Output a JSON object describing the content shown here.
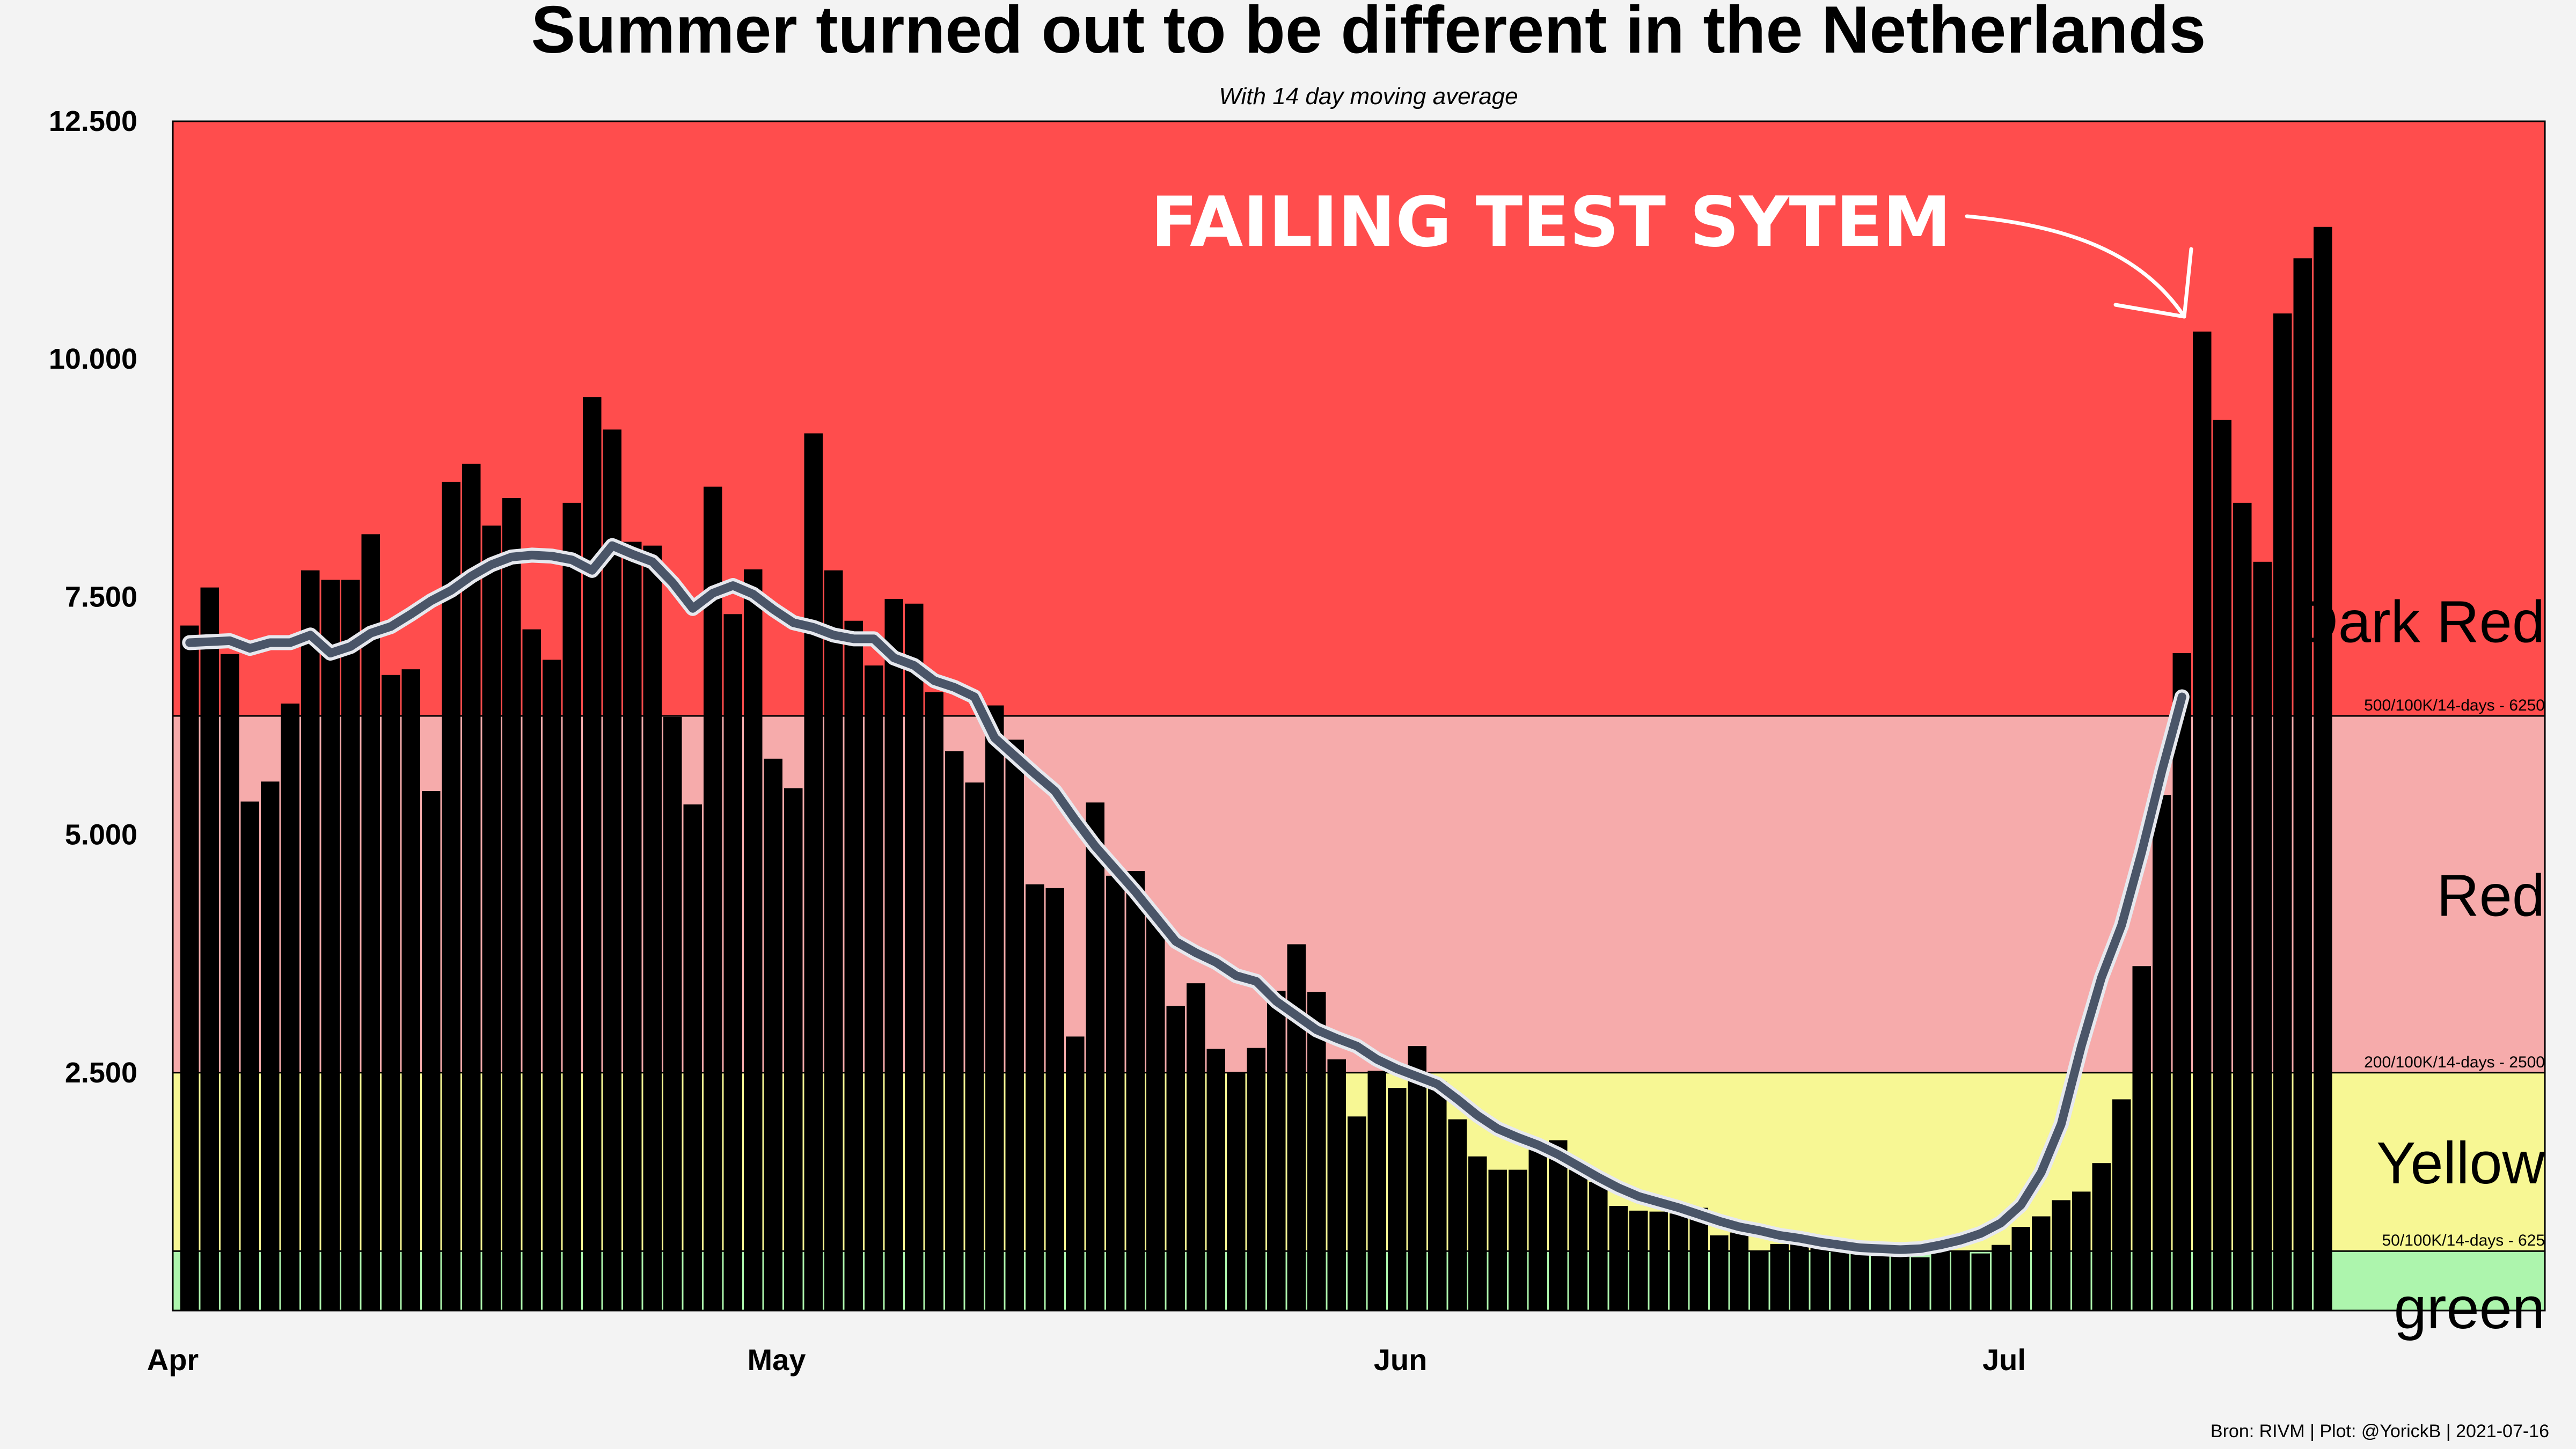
{
  "chart_data": {
    "type": "bar",
    "title": "Summer turned out to be different in the Netherlands",
    "subtitle": "With 14 day moving average",
    "x_ticks": [
      "Apr",
      "May",
      "Jun",
      "Jul"
    ],
    "y_ticks": [
      "2.500",
      "5.000",
      "7.500",
      "10.000",
      "12.500"
    ],
    "ylim": [
      0,
      12500
    ],
    "grid": false,
    "bars": {
      "start_date": "2021-04-01",
      "values": [
        7200,
        7600,
        6900,
        5350,
        5560,
        6380,
        7780,
        7680,
        7680,
        8160,
        6680,
        6740,
        5460,
        8710,
        8900,
        8250,
        8540,
        7160,
        6840,
        8490,
        9600,
        9260,
        8080,
        8040,
        6240,
        5320,
        8660,
        7320,
        7790,
        5800,
        5490,
        9220,
        7780,
        7250,
        6780,
        7480,
        7430,
        6500,
        5880,
        5550,
        6360,
        6000,
        4480,
        4440,
        2880,
        5340,
        4570,
        4620,
        4150,
        3200,
        3440,
        2750,
        2510,
        2760,
        3360,
        3850,
        3350,
        2640,
        2040,
        2520,
        2340,
        2780,
        2410,
        2010,
        1620,
        1480,
        1480,
        1690,
        1790,
        1480,
        1350,
        1100,
        1050,
        1040,
        1020,
        1080,
        790,
        820,
        620,
        700,
        700,
        680,
        650,
        680,
        680,
        700,
        560,
        640,
        620,
        600,
        690,
        880,
        990,
        1160,
        1250,
        1550,
        2220,
        3620,
        5420,
        6910,
        10290,
        9360,
        8490,
        7870,
        10480,
        11060,
        11390
      ]
    },
    "moving_average": {
      "name": "14 day moving average",
      "start_date": "2021-04-01",
      "values": [
        7020,
        7030,
        7040,
        6960,
        7020,
        7020,
        7100,
        6910,
        6980,
        7120,
        7190,
        7320,
        7460,
        7570,
        7720,
        7840,
        7920,
        7940,
        7930,
        7890,
        7780,
        8040,
        7950,
        7870,
        7650,
        7380,
        7540,
        7620,
        7530,
        7370,
        7230,
        7180,
        7100,
        7060,
        7060,
        6860,
        6780,
        6620,
        6550,
        6450,
        6020,
        5830,
        5640,
        5460,
        5160,
        4880,
        4640,
        4400,
        4140,
        3880,
        3760,
        3660,
        3520,
        3460,
        3250,
        3100,
        2950,
        2860,
        2780,
        2640,
        2540,
        2460,
        2380,
        2220,
        2050,
        1910,
        1820,
        1740,
        1640,
        1520,
        1400,
        1290,
        1200,
        1140,
        1080,
        1010,
        940,
        880,
        840,
        790,
        760,
        720,
        690,
        660,
        650,
        640,
        650,
        690,
        740,
        810,
        920,
        1110,
        1450,
        1960,
        2780,
        3500,
        4050,
        4820,
        5670,
        6450
      ]
    },
    "zones": [
      {
        "label": "green",
        "from": 0,
        "to": 625,
        "color": "#adf5ad"
      },
      {
        "label": "Yellow",
        "from": 625,
        "to": 2500,
        "color": "#f7f794"
      },
      {
        "label": "Red",
        "from": 2500,
        "to": 6250,
        "color": "#f6abab"
      },
      {
        "label": "Dark Red",
        "from": 6250,
        "to": 12500,
        "color": "#ff4d4d"
      }
    ],
    "thresholds": [
      {
        "value": 625,
        "label": "50/100K/14-days - 625"
      },
      {
        "value": 2500,
        "label": "200/100K/14-days - 2500"
      },
      {
        "value": 6250,
        "label": "500/100K/14-days - 6250"
      }
    ],
    "annotation": "FAILING TEST SYTEM",
    "source": "Bron: RIVM | Plot: @YorickB  |  2021-07-16",
    "colors": {
      "bar": "#000000",
      "moving_average": "#4a5568",
      "moving_average_outline": "#e6e8ee",
      "background": "#f3f3f3"
    }
  }
}
